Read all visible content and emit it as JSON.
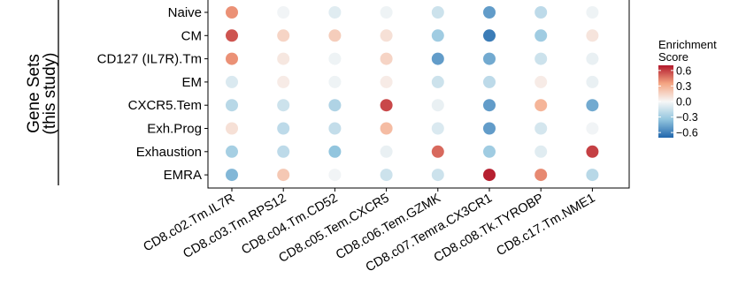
{
  "chart_data": {
    "type": "heatmap",
    "style": "dot-plot",
    "facet_label_lines": [
      "Gene Sets",
      "(this study)"
    ],
    "columns": [
      "CD8.c02.Tm.IL7R",
      "CD8.c03.Tm.RPS12",
      "CD8.c04.Tm.CD52",
      "CD8.c05.Tem.CXCR5",
      "CD8.c06.Tem.GZMK",
      "CD8.c07.Temra.CX3CR1",
      "CD8.c08.Tk.TYROBP",
      "CD8.c17.Tm.NME1"
    ],
    "rows": [
      "Naive",
      "CM",
      "CD127 (IL7R).Tm",
      "EM",
      "CXCR5.Tem",
      "Exh.Prog",
      "Exhaustion",
      "EMRA"
    ],
    "values": [
      [
        0.4,
        -0.02,
        -0.08,
        -0.03,
        -0.15,
        -0.5,
        -0.2,
        -0.03
      ],
      [
        0.55,
        0.15,
        0.18,
        0.1,
        -0.3,
        -0.62,
        -0.3,
        0.08
      ],
      [
        0.4,
        0.07,
        -0.03,
        0.15,
        -0.5,
        -0.45,
        -0.15,
        -0.05
      ],
      [
        -0.1,
        0.05,
        -0.03,
        0.05,
        -0.15,
        -0.2,
        0.05,
        -0.05
      ],
      [
        -0.22,
        -0.15,
        -0.25,
        0.58,
        -0.05,
        -0.5,
        0.28,
        -0.45
      ],
      [
        0.1,
        -0.2,
        -0.18,
        0.25,
        -0.1,
        -0.5,
        -0.12,
        -0.02
      ],
      [
        -0.28,
        -0.2,
        -0.35,
        -0.05,
        0.5,
        -0.3,
        -0.08,
        0.6
      ],
      [
        -0.4,
        0.2,
        -0.02,
        -0.15,
        -0.15,
        0.68,
        0.42,
        -0.22
      ]
    ],
    "legend": {
      "title_lines": [
        "Enrichment",
        "Score"
      ],
      "ticks": [
        0.6,
        0.3,
        0.0,
        -0.3,
        -0.6
      ],
      "tick_labels": [
        "0.6",
        "0.3",
        "0.0",
        "−0.3",
        "−0.6"
      ],
      "range": [
        -0.7,
        0.7
      ],
      "colors": {
        "low": "#2166ac",
        "mid_low": "#92c5de",
        "mid": "#f7f7f7",
        "mid_high": "#f4a582",
        "high": "#b2182b"
      }
    },
    "grid": false
  }
}
